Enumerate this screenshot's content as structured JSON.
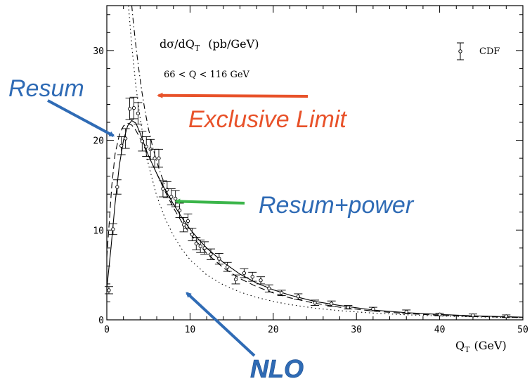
{
  "chart_data": {
    "type": "line",
    "title": "dσ/dQ",
    "title_sub": "T",
    "title_unit": "(pb/GeV)",
    "subtitle": "66 < Q < 116 GeV",
    "xlabel": "Q",
    "xlabel_sub": "T",
    "xlabel_unit": "(GeV)",
    "ylabel": "",
    "xlim": [
      0,
      50
    ],
    "ylim": [
      0,
      35
    ],
    "x_ticks": [
      0,
      10,
      20,
      30,
      40,
      50
    ],
    "y_ticks": [
      0,
      10,
      20,
      30
    ],
    "grid": false,
    "legend": {
      "position": "top-right",
      "entries": [
        "CDF"
      ]
    },
    "data_points": {
      "name": "CDF",
      "x": [
        0.25,
        0.75,
        1.25,
        1.75,
        2.25,
        2.75,
        3.25,
        3.75,
        4.25,
        4.75,
        5.25,
        5.75,
        6.25,
        6.75,
        7.25,
        7.75,
        8.25,
        8.75,
        9.25,
        9.75,
        10.25,
        10.75,
        11.25,
        11.75,
        12.5,
        13.5,
        14.5,
        15.5,
        16.5,
        17.5,
        18.5,
        19.5,
        21,
        23,
        25,
        27,
        29,
        32,
        36,
        40,
        44,
        48
      ],
      "y": [
        3.3,
        10.1,
        14.8,
        19.4,
        20.2,
        23.5,
        23.6,
        23.0,
        19.9,
        19.3,
        19.0,
        18.0,
        18.0,
        14.6,
        14.5,
        13.7,
        13.5,
        12.2,
        10.6,
        11.0,
        9.5,
        8.5,
        8.2,
        8.0,
        7.3,
        6.8,
        5.9,
        4.5,
        5.2,
        4.8,
        4.4,
        3.5,
        3.0,
        2.6,
        1.9,
        1.8,
        1.4,
        1.2,
        0.9,
        0.6,
        0.5,
        0.4
      ],
      "err": [
        0.4,
        0.6,
        0.8,
        1.0,
        1.1,
        1.2,
        1.2,
        1.2,
        1.1,
        1.1,
        1.1,
        1.0,
        1.0,
        0.9,
        0.9,
        0.9,
        0.9,
        0.8,
        0.8,
        0.8,
        0.7,
        0.7,
        0.7,
        0.7,
        0.6,
        0.6,
        0.5,
        0.5,
        0.5,
        0.5,
        0.4,
        0.4,
        0.3,
        0.3,
        0.3,
        0.3,
        0.2,
        0.2,
        0.2,
        0.15,
        0.15,
        0.15
      ]
    },
    "curves": [
      {
        "id": "resum_power",
        "style": "solid",
        "x": [
          0,
          0.5,
          1,
          1.5,
          2,
          2.5,
          3,
          3.5,
          4,
          4.5,
          5,
          6,
          7,
          8,
          9,
          10,
          11,
          12,
          14,
          16,
          18,
          20,
          22,
          25,
          28,
          32,
          36,
          40,
          44,
          48,
          50
        ],
        "y": [
          3.5,
          8.0,
          13.0,
          17.2,
          20.0,
          21.6,
          22.2,
          21.9,
          20.8,
          19.5,
          18.3,
          16.3,
          14.5,
          12.9,
          11.4,
          10.1,
          9.0,
          8.0,
          6.4,
          5.1,
          4.1,
          3.35,
          2.75,
          2.05,
          1.6,
          1.1,
          0.8,
          0.6,
          0.45,
          0.35,
          0.3
        ]
      },
      {
        "id": "resum",
        "style": "dashed",
        "x": [
          0,
          0.3,
          0.6,
          1,
          1.5,
          2,
          2.5,
          3,
          3.5,
          4,
          5,
          6,
          7,
          8,
          9,
          10,
          12,
          14,
          16,
          18,
          20,
          22,
          25,
          28,
          32,
          36,
          40,
          44,
          48,
          50
        ],
        "y": [
          7.0,
          11.0,
          15.0,
          18.5,
          20.6,
          21.6,
          21.9,
          21.7,
          21.1,
          20.2,
          18.3,
          16.3,
          14.3,
          12.5,
          10.9,
          9.6,
          7.4,
          5.8,
          4.6,
          3.7,
          3.0,
          2.45,
          1.85,
          1.4,
          0.98,
          0.7,
          0.5,
          0.38,
          0.3,
          0.26
        ]
      },
      {
        "id": "nlo",
        "style": "dotted",
        "x": [
          2.6,
          3,
          3.5,
          4,
          4.5,
          5,
          6,
          7,
          8,
          9,
          10,
          12,
          14,
          16,
          18,
          20,
          22,
          25,
          28,
          32,
          36,
          40,
          44,
          48,
          50
        ],
        "y": [
          35,
          30.5,
          26.0,
          22.5,
          19.6,
          17.3,
          13.8,
          11.3,
          9.4,
          7.9,
          6.7,
          5.0,
          3.9,
          3.1,
          2.5,
          2.05,
          1.7,
          1.3,
          1.02,
          0.75,
          0.56,
          0.43,
          0.34,
          0.27,
          0.24
        ]
      },
      {
        "id": "exclusive_limit",
        "style": "dashdot",
        "x": [
          3.0,
          3.2,
          3.5,
          3.8,
          4.2,
          4.6,
          5,
          5.5,
          6,
          6.5,
          7
        ],
        "y": [
          35,
          33,
          30.5,
          28.2,
          25.5,
          23.2,
          21.3,
          19.3,
          17.6,
          16.2,
          15.0
        ]
      }
    ],
    "annotations": [
      {
        "text": "Resum",
        "color": "#2f6bb5",
        "target": [
          0.8,
          20.5
        ]
      },
      {
        "text": "Exclusive Limit",
        "color": "#e8522a",
        "target": [
          6.2,
          25.0
        ]
      },
      {
        "text": "Resum+power",
        "color": "#2f6bb5",
        "target": [
          8.3,
          13.2
        ]
      },
      {
        "text": "NLO",
        "color": "#2f6bb5",
        "target": [
          9.6,
          3.0
        ]
      }
    ]
  }
}
